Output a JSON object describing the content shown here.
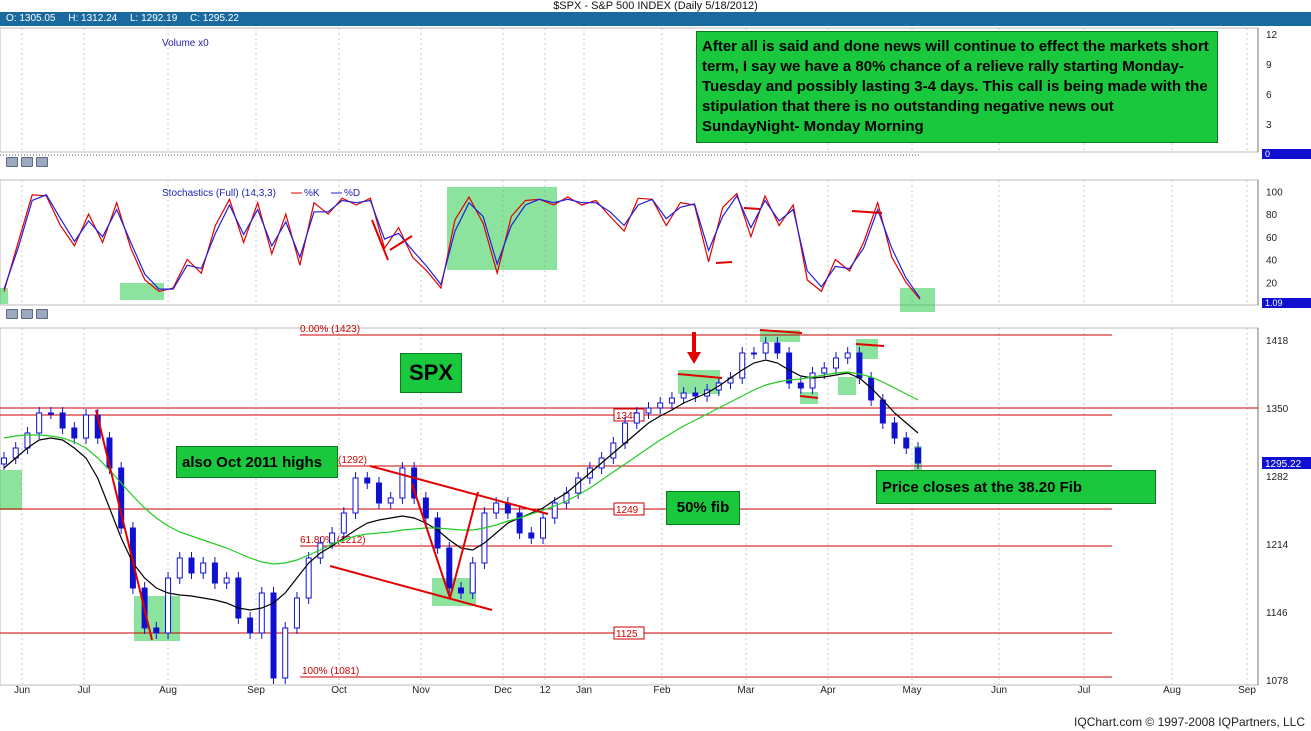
{
  "title": "$SPX - S&P 500 INDEX (Daily 5/18/2012)",
  "ohlc": {
    "open": "O: 1305.05",
    "high": "H: 1312.24",
    "low": "L: 1292.19",
    "close": "C: 1295.22"
  },
  "footer": "IQChart.com © 1997-2008 IQPartners, LLC",
  "annotations": {
    "main_note": "After all is said and done news will continue to effect the markets short term, I say we have a 80% chance of a relieve rally starting Monday-Tuesday and possibly lasting 3-4 days. This call is being made with the stipulation that there is no outstanding negative news out SundayNight- Monday Morning",
    "spx": "SPX",
    "oct_highs": "also Oct 2011 highs",
    "fib50": "50% fib",
    "price_closes": "Price closes at the 38.20 Fib"
  },
  "colors": {
    "price_up": "#1010d0",
    "price_down": "#1010d0",
    "ma_short": "#000000",
    "ma_long": "#22cc22",
    "fib": "#cc0000",
    "highlight": "#19c83c",
    "k_line": "#e00000",
    "d_line": "#2020e0",
    "header_bar": "#1a6aa0"
  },
  "chart_data": [
    {
      "type": "bar",
      "panel": "volume",
      "title": "Volume x0",
      "y_ticks": [
        "12",
        "9",
        "6",
        "3",
        "0"
      ],
      "current_value": "0",
      "values": []
    },
    {
      "type": "line",
      "panel": "stochastics",
      "title": "Stochastics (Full) (14,3,3)",
      "legend": [
        "%K",
        "%D"
      ],
      "y_ticks": [
        "100",
        "80",
        "60",
        "40",
        "20"
      ],
      "ylim": [
        0,
        110
      ],
      "current_value": "1.09",
      "series": [
        {
          "name": "%K",
          "values": [
            12,
            55,
            97,
            96,
            70,
            52,
            80,
            55,
            90,
            50,
            22,
            12,
            15,
            40,
            28,
            70,
            93,
            55,
            90,
            45,
            80,
            35,
            90,
            80,
            94,
            88,
            94,
            50,
            68,
            42,
            30,
            15,
            75,
            95,
            72,
            28,
            78,
            92,
            93,
            88,
            95,
            88,
            92,
            78,
            65,
            94,
            93,
            70,
            90,
            88,
            38,
            86,
            98,
            60,
            96,
            70,
            88,
            22,
            12,
            40,
            30,
            55,
            90,
            42,
            20,
            5
          ]
        },
        {
          "name": "%D",
          "values": [
            14,
            50,
            92,
            97,
            76,
            56,
            74,
            60,
            84,
            55,
            27,
            14,
            14,
            35,
            32,
            63,
            88,
            62,
            84,
            52,
            73,
            42,
            82,
            82,
            92,
            90,
            92,
            58,
            63,
            48,
            34,
            18,
            65,
            90,
            78,
            36,
            70,
            88,
            93,
            90,
            93,
            90,
            90,
            82,
            70,
            88,
            93,
            76,
            86,
            89,
            48,
            78,
            96,
            68,
            92,
            74,
            84,
            30,
            16,
            34,
            32,
            50,
            84,
            50,
            24,
            6
          ]
        }
      ]
    },
    {
      "type": "candlestick",
      "panel": "price",
      "title": "SPX",
      "x_ticks": [
        "Jun",
        "Jul",
        "Aug",
        "Sep",
        "Oct",
        "Nov",
        "Dec",
        "12",
        "Jan",
        "Feb",
        "Mar",
        "Apr",
        "May",
        "Jun",
        "Jul",
        "Aug",
        "Sep"
      ],
      "y_ticks": [
        "1418",
        "1350",
        "1282",
        "1214",
        "1146",
        "1078"
      ],
      "ylim": [
        1073,
        1430
      ],
      "current_value": "1295.22",
      "close": [
        1300,
        1310,
        1325,
        1345,
        1345,
        1330,
        1320,
        1343,
        1320,
        1290,
        1230,
        1170,
        1130,
        1125,
        1180,
        1200,
        1185,
        1195,
        1175,
        1180,
        1140,
        1125,
        1165,
        1080,
        1130,
        1160,
        1200,
        1215,
        1225,
        1245,
        1280,
        1275,
        1255,
        1260,
        1290,
        1260,
        1240,
        1210,
        1170,
        1165,
        1195,
        1245,
        1255,
        1245,
        1225,
        1220,
        1240,
        1255,
        1265,
        1280,
        1290,
        1300,
        1315,
        1335,
        1345,
        1350,
        1355,
        1360,
        1365,
        1362,
        1368,
        1375,
        1380,
        1405,
        1405,
        1415,
        1405,
        1375,
        1370,
        1385,
        1390,
        1400,
        1405,
        1380,
        1358,
        1335,
        1320,
        1310,
        1295
      ],
      "moving_averages": [
        {
          "name": "short MA",
          "values": [
            1290,
            1300,
            1310,
            1318,
            1320,
            1318,
            1310,
            1300,
            1280,
            1250,
            1220,
            1195,
            1180,
            1170,
            1165,
            1163,
            1162,
            1160,
            1158,
            1155,
            1150,
            1148,
            1150,
            1155,
            1165,
            1180,
            1195,
            1205,
            1212,
            1220,
            1228,
            1235,
            1238,
            1240,
            1242,
            1240,
            1235,
            1228,
            1218,
            1210,
            1208,
            1215,
            1225,
            1235,
            1240,
            1245,
            1250,
            1258,
            1265,
            1275,
            1285,
            1295,
            1305,
            1315,
            1325,
            1335,
            1342,
            1348,
            1355,
            1360,
            1365,
            1372,
            1380,
            1388,
            1395,
            1398,
            1395,
            1388,
            1382,
            1380,
            1381,
            1383,
            1385,
            1380,
            1370,
            1358,
            1345,
            1335,
            1325
          ]
        },
        {
          "name": "long MA",
          "values": [
            1320,
            1322,
            1323,
            1323,
            1322,
            1320,
            1316,
            1310,
            1300,
            1288,
            1275,
            1262,
            1250,
            1240,
            1232,
            1226,
            1222,
            1218,
            1214,
            1210,
            1205,
            1200,
            1196,
            1194,
            1195,
            1198,
            1203,
            1208,
            1214,
            1218,
            1222,
            1224,
            1225,
            1226,
            1228,
            1229,
            1230,
            1230,
            1229,
            1228,
            1228,
            1230,
            1233,
            1237,
            1240,
            1244,
            1248,
            1252,
            1257,
            1263,
            1270,
            1278,
            1286,
            1294,
            1302,
            1310,
            1318,
            1325,
            1332,
            1338,
            1344,
            1350,
            1356,
            1362,
            1368,
            1373,
            1376,
            1378,
            1379,
            1381,
            1383,
            1385,
            1386,
            1384,
            1381,
            1376,
            1370,
            1364,
            1358
          ]
        }
      ],
      "fib_levels": [
        {
          "level": "0.00% (1423)",
          "value": 1423
        },
        {
          "level": "1343",
          "value": 1343
        },
        {
          "level": "(1292)",
          "value": 1292
        },
        {
          "level": "1249",
          "value": 1249
        },
        {
          "level": "61.80% (1212)",
          "value": 1212
        },
        {
          "level": "1125",
          "value": 1125
        },
        {
          "level": "100% (1081)",
          "value": 1081
        }
      ],
      "horizontal_line_1350": 1350
    }
  ]
}
